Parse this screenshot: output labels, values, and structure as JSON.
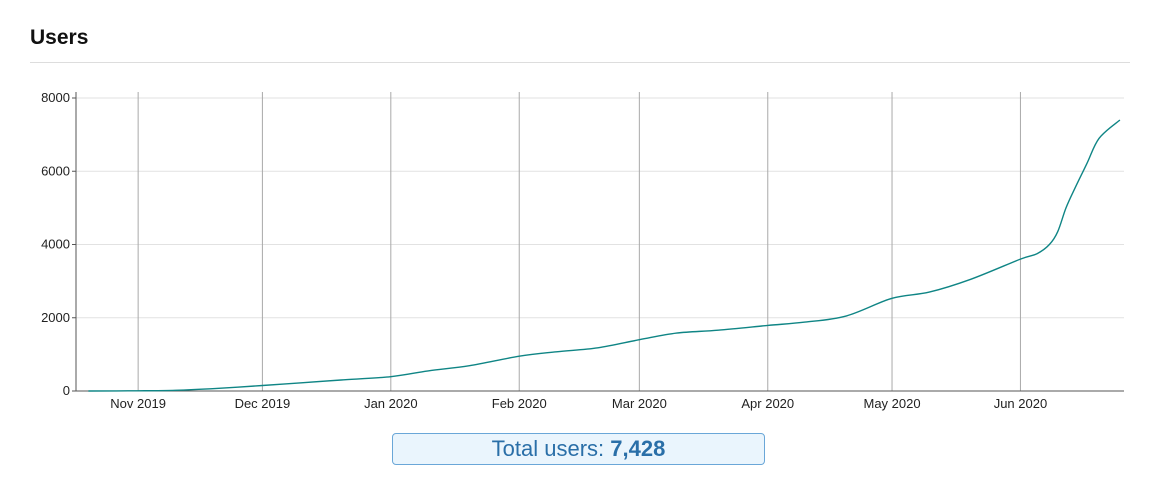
{
  "header": {
    "title": "Users"
  },
  "summary": {
    "label": "Total users:",
    "value": "7,428"
  },
  "chart_data": {
    "type": "line",
    "title": "Users",
    "xlabel": "",
    "ylabel": "",
    "ylim": [
      0,
      8000
    ],
    "xlim": [
      "2019-10-17",
      "2020-06-26"
    ],
    "yticks": [
      0,
      2000,
      4000,
      6000,
      8000
    ],
    "xticks": [
      {
        "label": "Nov 2019",
        "date": "2019-11-01"
      },
      {
        "label": "Dec 2019",
        "date": "2019-12-01"
      },
      {
        "label": "Jan 2020",
        "date": "2020-01-01"
      },
      {
        "label": "Feb 2020",
        "date": "2020-02-01"
      },
      {
        "label": "Mar 2020",
        "date": "2020-03-01"
      },
      {
        "label": "Apr 2020",
        "date": "2020-04-01"
      },
      {
        "label": "May 2020",
        "date": "2020-05-01"
      },
      {
        "label": "Jun 2020",
        "date": "2020-06-01"
      }
    ],
    "grid": {
      "x": true,
      "y": true
    },
    "line_color": "#0f8585",
    "series": [
      {
        "x": [
          "2019-10-20",
          "2019-11-01",
          "2019-11-10",
          "2019-11-20",
          "2019-12-01",
          "2019-12-10",
          "2019-12-20",
          "2020-01-01",
          "2020-01-10",
          "2020-01-20",
          "2020-02-01",
          "2020-02-10",
          "2020-02-20",
          "2020-03-01",
          "2020-03-10",
          "2020-03-20",
          "2020-04-01",
          "2020-04-10",
          "2020-04-20",
          "2020-05-01",
          "2020-05-10",
          "2020-05-20",
          "2020-06-01",
          "2020-06-05",
          "2020-06-08",
          "2020-06-10",
          "2020-06-12",
          "2020-06-14",
          "2020-06-17",
          "2020-06-20",
          "2020-06-25"
        ],
        "values": [
          0,
          5,
          20,
          70,
          150,
          220,
          300,
          390,
          550,
          690,
          950,
          1070,
          1180,
          1400,
          1580,
          1660,
          1790,
          1880,
          2050,
          2530,
          2700,
          3050,
          3600,
          3750,
          4000,
          4350,
          5000,
          5500,
          6200,
          6900,
          7400
        ]
      }
    ]
  }
}
